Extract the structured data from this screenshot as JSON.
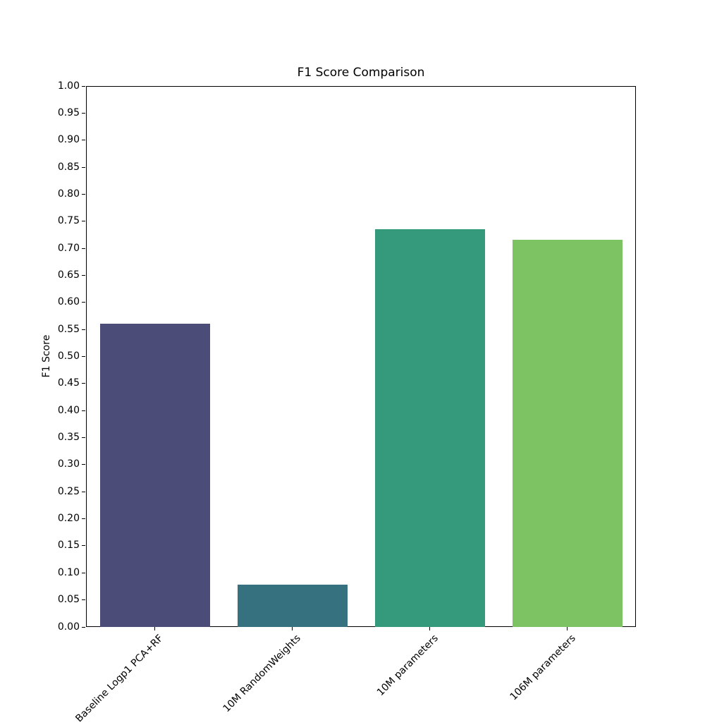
{
  "figure": {
    "background_color": "#ffffff",
    "axis_color": "#000000",
    "text_color": "#000000"
  },
  "chart_data": {
    "type": "bar",
    "title": "F1 Score Comparison",
    "xlabel": "",
    "ylabel": "F1 Score",
    "categories": [
      "Baseline Logp1 PCA+RF",
      "10M RandomWeights",
      "10M parameters",
      "106M parameters"
    ],
    "values": [
      0.56,
      0.078,
      0.735,
      0.716
    ],
    "bar_colors": [
      "#4b4d78",
      "#36717f",
      "#35997c",
      "#7dc364"
    ],
    "ylim": [
      0.0,
      1.0
    ],
    "ytick_step": 0.05,
    "ytick_decimals": 2,
    "xtick_rotation_deg": 45,
    "grid": false,
    "legend_position": "none",
    "bar_relative_width": 0.8
  }
}
